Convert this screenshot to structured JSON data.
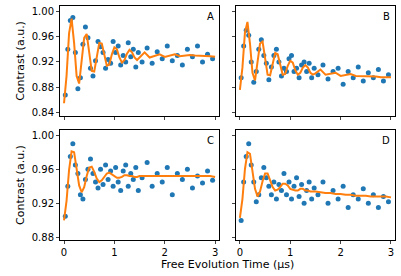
{
  "chart_data": [
    {
      "type": "scatter",
      "title": "A",
      "ylabel": "Contrast (a.u.)",
      "grid": false,
      "tick_labels": "y",
      "xlim": [
        -0.08,
        3.08
      ],
      "xticks": [
        0,
        1,
        2,
        3
      ],
      "ylim": [
        0.835,
        1.008
      ],
      "yticks": [
        0.84,
        0.88,
        0.92,
        0.96,
        {
          "value": 1,
          "label": "1.00"
        }
      ],
      "series": [
        {
          "type": "scatter",
          "color": "#1f77b4",
          "marker": "circle",
          "x": [
            0.025,
            0.075,
            0.125,
            0.175,
            0.225,
            0.275,
            0.325,
            0.375,
            0.425,
            0.475,
            0.525,
            0.575,
            0.625,
            0.675,
            0.725,
            0.775,
            0.825,
            0.875,
            0.925,
            0.975,
            1.025,
            1.075,
            1.125,
            1.175,
            1.225,
            1.275,
            1.325,
            1.375,
            1.425,
            1.475,
            1.55,
            1.65,
            1.75,
            1.85,
            1.95,
            2.05,
            2.15,
            2.25,
            2.35,
            2.45,
            2.55,
            2.65,
            2.75,
            2.85,
            2.95
          ],
          "values": [
            0.868,
            0.94,
            0.985,
            0.99,
            0.935,
            0.878,
            0.895,
            0.948,
            0.975,
            0.958,
            0.91,
            0.898,
            0.922,
            0.952,
            0.944,
            0.935,
            0.91,
            0.924,
            0.918,
            0.952,
            0.935,
            0.945,
            0.915,
            0.93,
            0.92,
            0.95,
            0.928,
            0.94,
            0.912,
            0.935,
            0.92,
            0.942,
            0.918,
            0.936,
            0.925,
            0.945,
            0.922,
            0.93,
            0.915,
            0.94,
            0.928,
            0.945,
            0.92,
            0.932,
            0.925
          ]
        },
        {
          "type": "line",
          "color": "#ff7f0e",
          "line_style": "solid",
          "x": [
            0,
            0.05,
            0.1,
            0.15,
            0.2,
            0.25,
            0.3,
            0.35,
            0.4,
            0.45,
            0.5,
            0.55,
            0.6,
            0.65,
            0.7,
            0.75,
            0.8,
            0.85,
            0.9,
            0.95,
            1,
            1.05,
            1.1,
            1.15,
            1.2,
            1.25,
            1.3,
            1.35,
            1.4,
            1.45,
            1.5,
            1.6,
            1.7,
            1.8,
            1.9,
            2,
            2.1,
            2.2,
            2.3,
            2.4,
            2.5,
            2.6,
            2.7,
            2.8,
            2.9,
            3
          ],
          "values": [
            0.855,
            0.898,
            0.965,
            0.988,
            0.95,
            0.898,
            0.886,
            0.918,
            0.958,
            0.964,
            0.936,
            0.906,
            0.905,
            0.928,
            0.95,
            0.949,
            0.929,
            0.914,
            0.916,
            0.932,
            0.943,
            0.94,
            0.927,
            0.919,
            0.923,
            0.933,
            0.939,
            0.935,
            0.927,
            0.923,
            0.927,
            0.935,
            0.927,
            0.929,
            0.932,
            0.928,
            0.93,
            0.932,
            0.929,
            0.93,
            0.931,
            0.93,
            0.93,
            0.929,
            0.929,
            0.928
          ]
        }
      ]
    },
    {
      "type": "scatter",
      "title": "B",
      "grid": false,
      "tick_labels": false,
      "xlim": [
        -0.08,
        3.08
      ],
      "xticks": [
        0,
        1,
        2,
        3
      ],
      "ylim": [
        0.835,
        1.008
      ],
      "yticks": [
        0.84,
        0.88,
        0.92,
        0.96,
        {
          "value": 1,
          "label": "1.00"
        }
      ],
      "series": [
        {
          "type": "scatter",
          "color": "#1f77b4",
          "marker": "circle",
          "x": [
            0.025,
            0.075,
            0.125,
            0.175,
            0.225,
            0.275,
            0.325,
            0.375,
            0.425,
            0.475,
            0.525,
            0.575,
            0.625,
            0.675,
            0.725,
            0.775,
            0.825,
            0.875,
            0.925,
            0.975,
            1.025,
            1.075,
            1.125,
            1.175,
            1.225,
            1.275,
            1.325,
            1.375,
            1.425,
            1.475,
            1.55,
            1.65,
            1.75,
            1.85,
            1.95,
            2.05,
            2.15,
            2.25,
            2.35,
            2.45,
            2.55,
            2.65,
            2.75,
            2.85,
            2.95
          ],
          "values": [
            0.895,
            0.945,
            0.97,
            0.962,
            0.92,
            0.888,
            0.905,
            0.94,
            0.955,
            0.93,
            0.918,
            0.892,
            0.912,
            0.93,
            0.94,
            0.92,
            0.898,
            0.91,
            0.905,
            0.925,
            0.93,
            0.905,
            0.91,
            0.895,
            0.915,
            0.92,
            0.905,
            0.918,
            0.895,
            0.91,
            0.9,
            0.915,
            0.893,
            0.905,
            0.91,
            0.885,
            0.905,
            0.895,
            0.912,
            0.89,
            0.903,
            0.895,
            0.908,
            0.89,
            0.9
          ]
        },
        {
          "type": "line",
          "color": "#ff7f0e",
          "line_style": "solid",
          "x": [
            0,
            0.05,
            0.1,
            0.15,
            0.2,
            0.25,
            0.3,
            0.35,
            0.4,
            0.45,
            0.5,
            0.55,
            0.6,
            0.65,
            0.7,
            0.75,
            0.8,
            0.85,
            0.9,
            0.95,
            1,
            1.05,
            1.1,
            1.15,
            1.2,
            1.25,
            1.3,
            1.35,
            1.4,
            1.45,
            1.5,
            1.6,
            1.7,
            1.8,
            1.9,
            2,
            2.1,
            2.2,
            2.3,
            2.4,
            2.5,
            2.6,
            2.7,
            2.8,
            2.9,
            3
          ],
          "values": [
            0.876,
            0.911,
            0.966,
            0.983,
            0.949,
            0.903,
            0.891,
            0.917,
            0.949,
            0.952,
            0.927,
            0.9,
            0.899,
            0.916,
            0.934,
            0.932,
            0.914,
            0.9,
            0.901,
            0.914,
            0.922,
            0.919,
            0.907,
            0.9,
            0.903,
            0.911,
            0.915,
            0.911,
            0.903,
            0.9,
            0.902,
            0.908,
            0.9,
            0.901,
            0.903,
            0.898,
            0.9,
            0.901,
            0.898,
            0.898,
            0.898,
            0.897,
            0.897,
            0.896,
            0.896,
            0.896
          ]
        }
      ]
    },
    {
      "type": "scatter",
      "title": "C",
      "ylabel": "Contrast (a.u.)",
      "xlabel": "Free Evolution Time (μs)",
      "grid": false,
      "tick_labels": true,
      "xlim": [
        -0.08,
        3.08
      ],
      "xticks": [
        0,
        1,
        2,
        3
      ],
      "ylim": [
        0.877,
        1.006
      ],
      "yticks": [
        0.88,
        0.92,
        0.96,
        {
          "value": 1,
          "label": "1.00"
        }
      ],
      "series": [
        {
          "type": "scatter",
          "color": "#1f77b4",
          "marker": "circle",
          "x": [
            0.025,
            0.075,
            0.125,
            0.175,
            0.225,
            0.275,
            0.325,
            0.375,
            0.425,
            0.475,
            0.525,
            0.575,
            0.625,
            0.675,
            0.725,
            0.775,
            0.825,
            0.875,
            0.925,
            0.975,
            1.025,
            1.075,
            1.125,
            1.175,
            1.225,
            1.275,
            1.325,
            1.375,
            1.425,
            1.475,
            1.55,
            1.65,
            1.75,
            1.85,
            1.95,
            2.05,
            2.15,
            2.25,
            2.35,
            2.45,
            2.55,
            2.65,
            2.75,
            2.85,
            2.95
          ],
          "values": [
            0.905,
            0.94,
            0.975,
            0.99,
            0.965,
            0.955,
            0.93,
            0.925,
            0.948,
            0.96,
            0.972,
            0.955,
            0.945,
            0.938,
            0.96,
            0.942,
            0.965,
            0.948,
            0.958,
            0.94,
            0.962,
            0.945,
            0.935,
            0.958,
            0.965,
            0.94,
            0.955,
            0.948,
            0.962,
            0.935,
            0.95,
            0.968,
            0.94,
            0.955,
            0.945,
            0.962,
            0.93,
            0.955,
            0.948,
            0.96,
            0.938,
            0.952,
            0.944,
            0.958,
            0.947
          ]
        },
        {
          "type": "line",
          "color": "#ff7f0e",
          "line_style": "solid",
          "x": [
            0,
            0.05,
            0.1,
            0.15,
            0.2,
            0.25,
            0.3,
            0.35,
            0.4,
            0.45,
            0.5,
            0.55,
            0.6,
            0.65,
            0.7,
            0.75,
            0.8,
            0.85,
            0.9,
            0.95,
            1,
            1.05,
            1.1,
            1.15,
            1.2,
            1.25,
            1.3,
            1.35,
            1.4,
            1.45,
            1.5,
            1.6,
            1.7,
            1.8,
            1.9,
            2,
            2.1,
            2.2,
            2.3,
            2.4,
            2.5,
            2.6,
            2.7,
            2.8,
            2.9,
            3
          ],
          "values": [
            0.9,
            0.923,
            0.959,
            0.981,
            0.98,
            0.961,
            0.941,
            0.933,
            0.939,
            0.952,
            0.962,
            0.963,
            0.957,
            0.949,
            0.945,
            0.947,
            0.951,
            0.955,
            0.956,
            0.954,
            0.951,
            0.95,
            0.95,
            0.951,
            0.953,
            0.953,
            0.952,
            0.952,
            0.951,
            0.951,
            0.952,
            0.952,
            0.952,
            0.952,
            0.952,
            0.952,
            0.952,
            0.952,
            0.952,
            0.952,
            0.952,
            0.952,
            0.952,
            0.952,
            0.952,
            0.951
          ]
        }
      ]
    },
    {
      "type": "scatter",
      "title": "D",
      "grid": false,
      "tick_labels": "x",
      "xlim": [
        -0.08,
        3.08
      ],
      "xticks": [
        0,
        1,
        2,
        3
      ],
      "ylim": [
        0.877,
        1.006
      ],
      "yticks": [
        0.88,
        0.92,
        0.96,
        {
          "value": 1,
          "label": "1.00"
        }
      ],
      "series": [
        {
          "type": "scatter",
          "color": "#1f77b4",
          "marker": "circle",
          "x": [
            0.025,
            0.075,
            0.125,
            0.175,
            0.225,
            0.275,
            0.325,
            0.375,
            0.425,
            0.475,
            0.525,
            0.575,
            0.625,
            0.675,
            0.725,
            0.775,
            0.825,
            0.875,
            0.925,
            0.975,
            1.025,
            1.075,
            1.125,
            1.175,
            1.225,
            1.275,
            1.325,
            1.375,
            1.425,
            1.475,
            1.55,
            1.65,
            1.75,
            1.85,
            1.95,
            2.05,
            2.15,
            2.25,
            2.35,
            2.45,
            2.55,
            2.65,
            2.75,
            2.85,
            2.95
          ],
          "values": [
            0.9,
            0.945,
            0.975,
            0.99,
            0.965,
            0.945,
            0.922,
            0.93,
            0.95,
            0.962,
            0.95,
            0.94,
            0.93,
            0.945,
            0.925,
            0.942,
            0.935,
            0.955,
            0.93,
            0.945,
            0.925,
            0.94,
            0.95,
            0.928,
            0.942,
            0.92,
            0.935,
            0.945,
            0.925,
            0.938,
            0.93,
            0.945,
            0.92,
            0.935,
            0.925,
            0.94,
            0.915,
            0.93,
            0.925,
            0.937,
            0.92,
            0.93,
            0.915,
            0.928,
            0.922
          ]
        },
        {
          "type": "line",
          "color": "#ff7f0e",
          "line_style": "solid",
          "x": [
            0,
            0.05,
            0.1,
            0.15,
            0.2,
            0.25,
            0.3,
            0.35,
            0.4,
            0.45,
            0.5,
            0.55,
            0.6,
            0.65,
            0.7,
            0.75,
            0.8,
            0.85,
            0.9,
            0.95,
            1,
            1.05,
            1.1,
            1.15,
            1.2,
            1.25,
            1.3,
            1.35,
            1.4,
            1.45,
            1.5,
            1.6,
            1.7,
            1.8,
            1.9,
            2,
            2.1,
            2.2,
            2.3,
            2.4,
            2.5,
            2.6,
            2.7,
            2.8,
            2.9,
            3
          ],
          "values": [
            0.903,
            0.925,
            0.96,
            0.98,
            0.978,
            0.958,
            0.937,
            0.928,
            0.934,
            0.946,
            0.955,
            0.955,
            0.948,
            0.939,
            0.935,
            0.936,
            0.939,
            0.943,
            0.943,
            0.941,
            0.937,
            0.936,
            0.935,
            0.935,
            0.937,
            0.937,
            0.935,
            0.935,
            0.934,
            0.934,
            0.934,
            0.933,
            0.932,
            0.932,
            0.931,
            0.931,
            0.93,
            0.93,
            0.929,
            0.929,
            0.929,
            0.928,
            0.928,
            0.928,
            0.928,
            0.927
          ]
        }
      ]
    }
  ]
}
